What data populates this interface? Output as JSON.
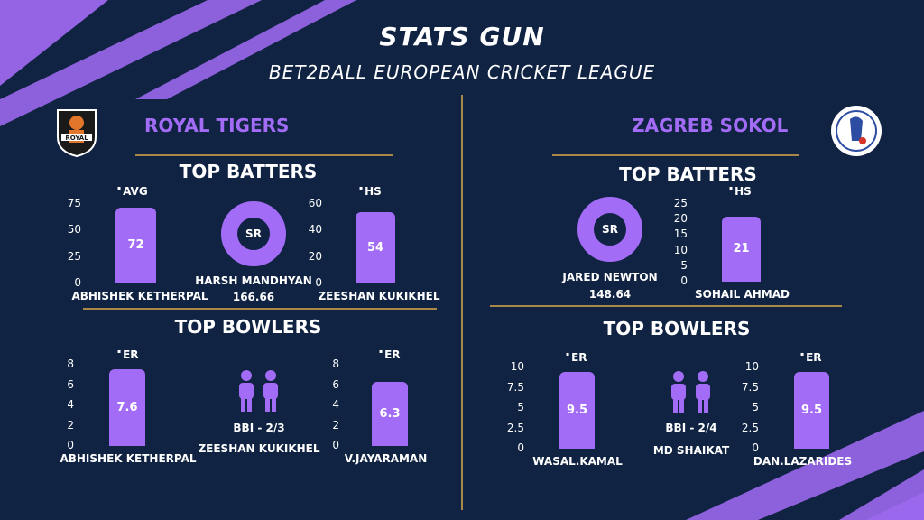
{
  "header": {
    "title": "STATS GUN",
    "subtitle": "BET2BALL EUROPEAN CRICKET LEAGUE"
  },
  "colors": {
    "background": "#102343",
    "accent": "#a36cf6",
    "rule": "#a9894a"
  },
  "teams": {
    "left": {
      "name": "ROYAL TIGERS",
      "logo_icon": "royal-tigers-logo",
      "logo_text": "ROYAL",
      "top_batters_title": "TOP BATTERS",
      "top_bowlers_title": "TOP BOWLERS",
      "sr_label": "SR",
      "sr_player": "HARSH MANDHYAN",
      "sr_value": "166.66",
      "bbi_label": "BBI - 2/3",
      "bbi_player": "ZEESHAN KUKIKHEL"
    },
    "right": {
      "name": "ZAGREB SOKOL",
      "logo_icon": "zagreb-sokol-logo",
      "top_batters_title": "TOP BATTERS",
      "top_bowlers_title": "TOP BOWLERS",
      "sr_label": "SR",
      "sr_player": "JARED NEWTON",
      "sr_value": "148.64",
      "bbi_label": "BBI - 2/4",
      "bbi_player": "MD SHAIKAT"
    }
  },
  "chart_data": [
    {
      "type": "bar",
      "metric": "AVG",
      "categories": [
        "ABHISHEK KETHERPAL"
      ],
      "values": [
        72
      ],
      "ylim": [
        0,
        75
      ],
      "ticks": [
        "75",
        "50",
        "25",
        "0"
      ]
    },
    {
      "type": "bar",
      "metric": "HS",
      "categories": [
        "ZEESHAN KUKIKHEL"
      ],
      "values": [
        54
      ],
      "ylim": [
        0,
        60
      ],
      "ticks": [
        "60",
        "40",
        "20",
        "0"
      ]
    },
    {
      "type": "bar",
      "metric": "ER",
      "categories": [
        "ABHISHEK KETHERPAL"
      ],
      "values": [
        7.6
      ],
      "ylim": [
        0,
        8
      ],
      "ticks": [
        "8",
        "6",
        "4",
        "2",
        "0"
      ]
    },
    {
      "type": "bar",
      "metric": "ER",
      "categories": [
        "V.JAYARAMAN"
      ],
      "values": [
        6.3
      ],
      "ylim": [
        0,
        8
      ],
      "ticks": [
        "8",
        "6",
        "4",
        "2",
        "0"
      ]
    },
    {
      "type": "bar",
      "metric": "HS",
      "categories": [
        "SOHAIL AHMAD"
      ],
      "values": [
        21
      ],
      "ylim": [
        0,
        25
      ],
      "ticks": [
        "25",
        "20",
        "15",
        "10",
        "5",
        "0"
      ]
    },
    {
      "type": "bar",
      "metric": "ER",
      "categories": [
        "WASAL.KAMAL"
      ],
      "values": [
        9.5
      ],
      "ylim": [
        0,
        10
      ],
      "ticks": [
        "10",
        "7.5",
        "5",
        "2.5",
        "0"
      ]
    },
    {
      "type": "bar",
      "metric": "ER",
      "categories": [
        "DAN.LAZARIDES"
      ],
      "values": [
        9.5
      ],
      "ylim": [
        0,
        10
      ],
      "ticks": [
        "10",
        "7.5",
        "5",
        "2.5",
        "0"
      ]
    }
  ]
}
